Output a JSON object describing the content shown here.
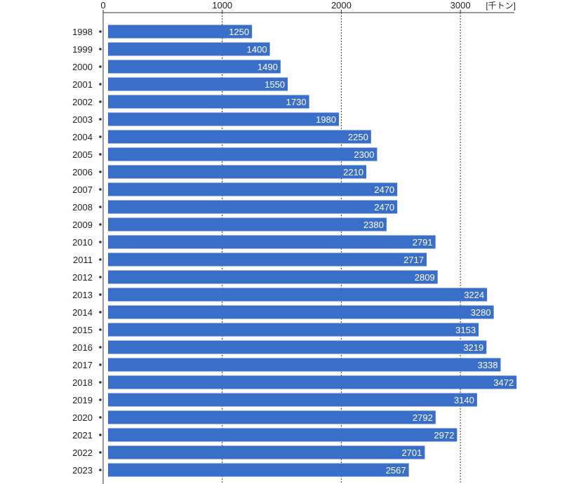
{
  "chart_data": {
    "type": "bar",
    "orientation": "horizontal",
    "title": "",
    "xlabel": "",
    "ylabel": "",
    "unit": "[千トン]",
    "xlim": [
      0,
      3500
    ],
    "x_ticks": [
      0,
      1000,
      2000,
      3000
    ],
    "grid": "vertical dotted lines at 1000, 2000, 3000",
    "bar_color": "#3a6fc9",
    "categories": [
      "1998",
      "1999",
      "2000",
      "2001",
      "2002",
      "2003",
      "2004",
      "2005",
      "2006",
      "2007",
      "2008",
      "2009",
      "2010",
      "2011",
      "2012",
      "2013",
      "2014",
      "2015",
      "2016",
      "2017",
      "2018",
      "2019",
      "2020",
      "2021",
      "2022",
      "2023"
    ],
    "values": [
      1250,
      1400,
      1490,
      1550,
      1730,
      1980,
      2250,
      2300,
      2210,
      2470,
      2470,
      2380,
      2791,
      2717,
      2809,
      3224,
      3280,
      3153,
      3219,
      3338,
      3472,
      3140,
      2792,
      2972,
      2701,
      2567
    ]
  }
}
